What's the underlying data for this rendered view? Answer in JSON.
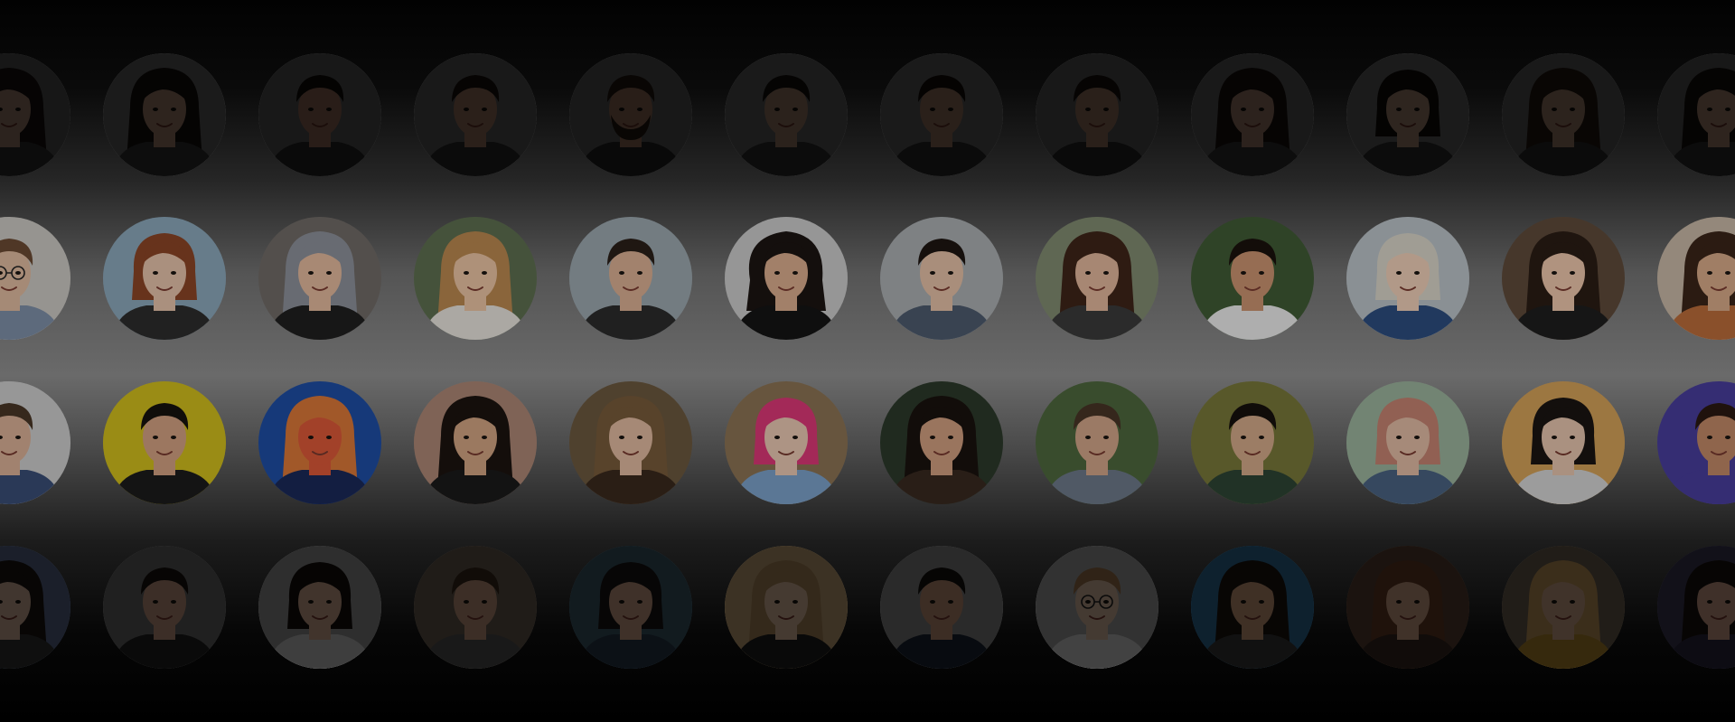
{
  "rows": [
    {
      "id": "r1",
      "shade": 0.78,
      "people": [
        {
          "bg": "#6b6b6b",
          "skin": "#c9a08a",
          "hair": "#1b1412",
          "shirt": "#3a3a3a",
          "hairStyle": "long"
        },
        {
          "bg": "#7a7a7a",
          "skin": "#cfa288",
          "hair": "#1a1210",
          "shirt": "#3d3d3d",
          "hairStyle": "long"
        },
        {
          "bg": "#707070",
          "skin": "#b9866c",
          "hair": "#16100c",
          "shirt": "#2f2f2f",
          "hairStyle": "short"
        },
        {
          "bg": "#737373",
          "skin": "#c39277",
          "hair": "#1d1510",
          "shirt": "#333",
          "hairStyle": "short"
        },
        {
          "bg": "#6e6e6e",
          "skin": "#b98870",
          "hair": "#2a1d16",
          "shirt": "#2c2c2c",
          "hairStyle": "beard"
        },
        {
          "bg": "#787878",
          "skin": "#c49a7f",
          "hair": "#1a1410",
          "shirt": "#3a3a3a",
          "hairStyle": "short"
        },
        {
          "bg": "#757575",
          "skin": "#bf9278",
          "hair": "#17110d",
          "shirt": "#353535",
          "hairStyle": "short"
        },
        {
          "bg": "#707070",
          "skin": "#c09176",
          "hair": "#1b1410",
          "shirt": "#313131",
          "hairStyle": "short"
        },
        {
          "bg": "#747474",
          "skin": "#c99d84",
          "hair": "#1d1410",
          "shirt": "#3b3b3b",
          "hairStyle": "long"
        },
        {
          "bg": "#7b7b7b",
          "skin": "#d2a88e",
          "hair": "#15100c",
          "shirt": "#3a3a3a",
          "hairStyle": "bob"
        },
        {
          "bg": "#727272",
          "skin": "#caa086",
          "hair": "#2a1c14",
          "shirt": "#343434",
          "hairStyle": "long"
        },
        {
          "bg": "#6e6e6e",
          "skin": "#cfa38a",
          "hair": "#1a120e",
          "shirt": "#3a3a3a",
          "hairStyle": "long"
        }
      ]
    },
    {
      "id": "r2",
      "shade": 0.25,
      "people": [
        {
          "bg": "#c9c6c1",
          "skin": "#dcb89e",
          "hair": "#6a4a33",
          "shirt": "#7d8ea6",
          "hairStyle": "glasses"
        },
        {
          "bg": "#8aa6b8",
          "skin": "#e3c0a8",
          "hair": "#8a4426",
          "shirt": "#2d2d2d",
          "hairStyle": "bob"
        },
        {
          "bg": "#6f6a66",
          "skin": "#e0b79b",
          "hair": "#8b8f98",
          "shirt": "#1f1f1f",
          "hairStyle": "long"
        },
        {
          "bg": "#5d6e4f",
          "skin": "#e8c2a2",
          "hair": "#b9874f",
          "shirt": "#e4e0da",
          "hairStyle": "long"
        },
        {
          "bg": "#9aa6ad",
          "skin": "#d8ae92",
          "hair": "#2a1f19",
          "shirt": "#2b2b2b",
          "hairStyle": "short"
        },
        {
          "bg": "#c8c8c8",
          "skin": "#d9ab8c",
          "hair": "#1b1412",
          "shirt": "#141414",
          "hairStyle": "curly"
        },
        {
          "bg": "#a8acaf",
          "skin": "#e2bea4",
          "hair": "#1e1612",
          "shirt": "#4c5a6c",
          "hairStyle": "short"
        },
        {
          "bg": "#7f8a6f",
          "skin": "#dfb59a",
          "hair": "#3e2519",
          "shirt": "#3a3a3a",
          "hairStyle": "long"
        },
        {
          "bg": "#3f5a34",
          "skin": "#c8926f",
          "hair": "#1a120d",
          "shirt": "#e8e8e8",
          "hairStyle": "short"
        },
        {
          "bg": "#b9c1c6",
          "skin": "#eccdb6",
          "hair": "#d6d2c6",
          "shirt": "#2c4d7e",
          "hairStyle": "bob"
        },
        {
          "bg": "#5e4a3a",
          "skin": "#ebc4aa",
          "hair": "#2a1c15",
          "shirt": "#1e1e1e",
          "hairStyle": "long"
        },
        {
          "bg": "#c6b6a4",
          "skin": "#d6a987",
          "hair": "#3a2518",
          "shirt": "#b86b3a",
          "hairStyle": "long"
        }
      ]
    },
    {
      "id": "r3",
      "shade": 0.28,
      "people": [
        {
          "bg": "#d2d2d2",
          "skin": "#dfb49a",
          "hair": "#4b3828",
          "shirt": "#3b4f79",
          "hairStyle": "short"
        },
        {
          "bg": "#d6c21e",
          "skin": "#d9a685",
          "hair": "#17120f",
          "shirt": "#1c1c1c",
          "hairStyle": "short"
        },
        {
          "bg": "#1f4fa8",
          "skin": "#e15a3a",
          "hair": "#e07a3a",
          "shirt": "#1b2a5a",
          "hairStyle": "long"
        },
        {
          "bg": "#b08a78",
          "skin": "#d7a886",
          "hair": "#1d1410",
          "shirt": "#1b1b1b",
          "hairStyle": "long"
        },
        {
          "bg": "#6e5a40",
          "skin": "#e6bea4",
          "hair": "#7a5d3c",
          "shirt": "#3b2a1e",
          "hairStyle": "long"
        },
        {
          "bg": "#8f7656",
          "skin": "#f0cdb8",
          "hair": "#e23a7a",
          "shirt": "#7ea6cf",
          "hairStyle": "bob"
        },
        {
          "bg": "#2d3b2c",
          "skin": "#d6a283",
          "hair": "#1a120e",
          "shirt": "#3a2a20",
          "hairStyle": "long"
        },
        {
          "bg": "#4f6a3f",
          "skin": "#d7a98c",
          "hair": "#4a3628",
          "shirt": "#6f7c8d",
          "hairStyle": "short"
        },
        {
          "bg": "#7b7a3b",
          "skin": "#d9ae8d",
          "hair": "#17110d",
          "shirt": "#2f4635",
          "hairStyle": "short"
        },
        {
          "bg": "#9fb7a0",
          "skin": "#e6bfa8",
          "hair": "#c98673",
          "shirt": "#4b6584",
          "hairStyle": "bob"
        },
        {
          "bg": "#d9a55a",
          "skin": "#eccab2",
          "hair": "#1b1612",
          "shirt": "#d8d8d8",
          "hairStyle": "bob"
        },
        {
          "bg": "#4a3fa0",
          "skin": "#c68c6a",
          "hair": "#2c1a12",
          "shirt": "#4a3fa0",
          "hairStyle": "short"
        }
      ]
    },
    {
      "id": "r4",
      "shade": 0.7,
      "people": [
        {
          "bg": "#5a6a8c",
          "skin": "#d9b49e",
          "hair": "#1b1412",
          "shirt": "#333",
          "hairStyle": "long"
        },
        {
          "bg": "#6d6d6d",
          "skin": "#c89c82",
          "hair": "#1a120f",
          "shirt": "#232323",
          "hairStyle": "short"
        },
        {
          "bg": "#9a9a9a",
          "skin": "#d9ae93",
          "hair": "#14100d",
          "shirt": "#d0d0d0",
          "hairStyle": "bob"
        },
        {
          "bg": "#6b5e52",
          "skin": "#c99c80",
          "hair": "#3a2a1c",
          "shirt": "#555",
          "hairStyle": "short"
        },
        {
          "bg": "#3d5a6a",
          "skin": "#d2a489",
          "hair": "#1a1714",
          "shirt": "#2b3a4c",
          "hairStyle": "bob"
        },
        {
          "bg": "#c8a878",
          "skin": "#e6c3a6",
          "hair": "#b08a5a",
          "shirt": "#1e1e1e",
          "hairStyle": "long"
        },
        {
          "bg": "#8c8c8c",
          "skin": "#c8967a",
          "hair": "#15110e",
          "shirt": "#1b2536",
          "hairStyle": "short"
        },
        {
          "bg": "#a8a8a8",
          "skin": "#e4c1a8",
          "hair": "#a0774d",
          "shirt": "#dcdcdc",
          "hairStyle": "glasses"
        },
        {
          "bg": "#2f6f9a",
          "skin": "#d2a07e",
          "hair": "#1d1410",
          "shirt": "#3a3a3a",
          "hairStyle": "long"
        },
        {
          "bg": "#5a4232",
          "skin": "#d8a88a",
          "hair": "#6a3f26",
          "shirt": "#3a2a22",
          "hairStyle": "long"
        },
        {
          "bg": "#6f6250",
          "skin": "#d6ac8c",
          "hair": "#c79a5b",
          "shirt": "#b48a2c",
          "hairStyle": "long"
        },
        {
          "bg": "#3f3a55",
          "skin": "#d2a28a",
          "hair": "#1a120e",
          "shirt": "#2e2a40",
          "hairStyle": "long"
        }
      ]
    }
  ]
}
